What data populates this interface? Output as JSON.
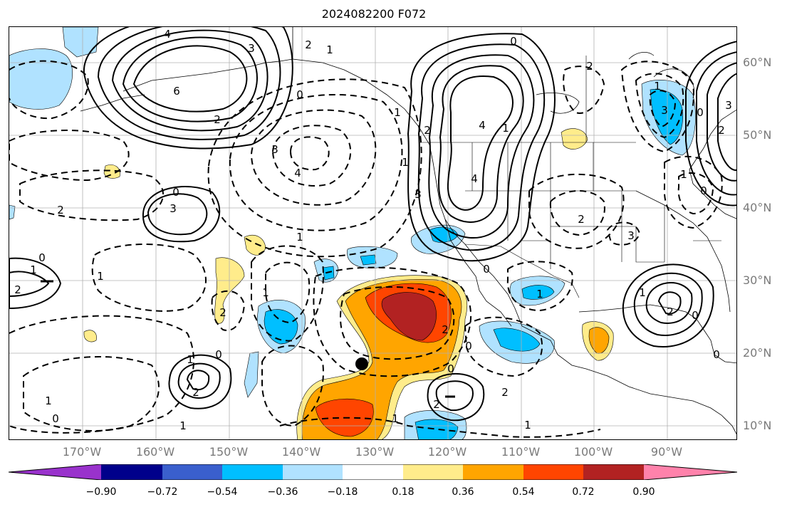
{
  "title": "2024082200 F072",
  "lat_labels": [
    "60°N",
    "50°N",
    "40°N",
    "30°N",
    "20°N",
    "10°N"
  ],
  "lon_labels": [
    "170°W",
    "160°W",
    "150°W",
    "140°W",
    "130°W",
    "120°W",
    "110°W",
    "100°W",
    "90°W"
  ],
  "colorbar": {
    "ticks": [
      "−0.90",
      "−0.72",
      "−0.54",
      "−0.36",
      "−0.18",
      "0.18",
      "0.36",
      "0.54",
      "0.72",
      "0.90"
    ],
    "colors": [
      "#9932cc",
      "#00008b",
      "#3a5fcd",
      "#00bfff",
      "#b0e2ff",
      "#ffffff",
      "#ffec8b",
      "#ffa500",
      "#ff4500",
      "#b22222",
      "#ff82ab"
    ]
  },
  "contour_labels": [
    "4",
    "3",
    "6",
    "2",
    "1",
    "0",
    "2",
    "1",
    "0",
    "3",
    "4",
    "4",
    "4",
    "3",
    "2",
    "1",
    "0",
    "2",
    "0",
    "1",
    "2",
    "3",
    "1",
    "1",
    "0",
    "1",
    "0",
    "1",
    "2",
    "1",
    "2",
    "1",
    "2",
    "1",
    "0",
    "2",
    "2",
    "0",
    "1",
    "0",
    "1",
    "2",
    "0",
    "1",
    "0",
    "1",
    "2",
    "3",
    "0",
    "1",
    "3",
    "2",
    "1",
    "0",
    "2",
    "3"
  ],
  "marker": "storm-center"
}
